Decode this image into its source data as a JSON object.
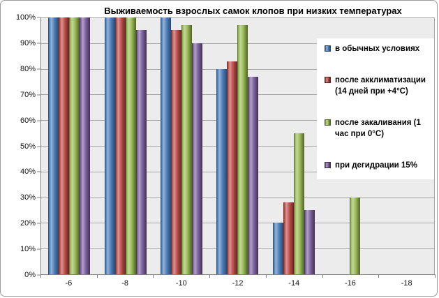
{
  "chart_data": {
    "type": "bar",
    "title": "Выживаемость взрослых самок клопов при низких температурах",
    "xlabel": "",
    "ylabel": "",
    "ylim": [
      0,
      100
    ],
    "grid": true,
    "legend_position": "right-overlay",
    "categories": [
      "-6",
      "-8",
      "-10",
      "-12",
      "-14",
      "-16",
      "-18"
    ],
    "y_axis": {
      "ticks": [
        "100%",
        "90%",
        "80%",
        "70%",
        "60%",
        "50%",
        "40%",
        "30%",
        "20%",
        "10%",
        "0%"
      ],
      "min": 0,
      "max": 100,
      "step": 10
    },
    "series": [
      {
        "name": "в обычных условиях",
        "color": "#4F81BD",
        "highlight": "#95B3D7",
        "shadow": "#2A4A73",
        "values": [
          100,
          100,
          100,
          80,
          20,
          0,
          0
        ]
      },
      {
        "name": "после акклиматизации (14 дней при +4°С)",
        "color": "#C0504D",
        "highlight": "#D99694",
        "shadow": "#632423",
        "values": [
          100,
          100,
          95,
          83,
          28,
          0,
          0
        ]
      },
      {
        "name": "после закаливания  (1 час при 0°С)",
        "color": "#9BBB59",
        "highlight": "#C3D69B",
        "shadow": "#4F6228",
        "values": [
          100,
          100,
          97,
          97,
          55,
          30,
          0
        ]
      },
      {
        "name": "при дегидрации 15%",
        "color": "#8064A2",
        "highlight": "#B3A2C7",
        "shadow": "#3F3151",
        "values": [
          100,
          95,
          90,
          77,
          25,
          0,
          0
        ]
      }
    ],
    "colors": {
      "plot_background": "#ECECEC",
      "gridline": "#A6A6A6",
      "axis": "#7F7F7F",
      "legend_background": "#FFFFFF"
    }
  }
}
